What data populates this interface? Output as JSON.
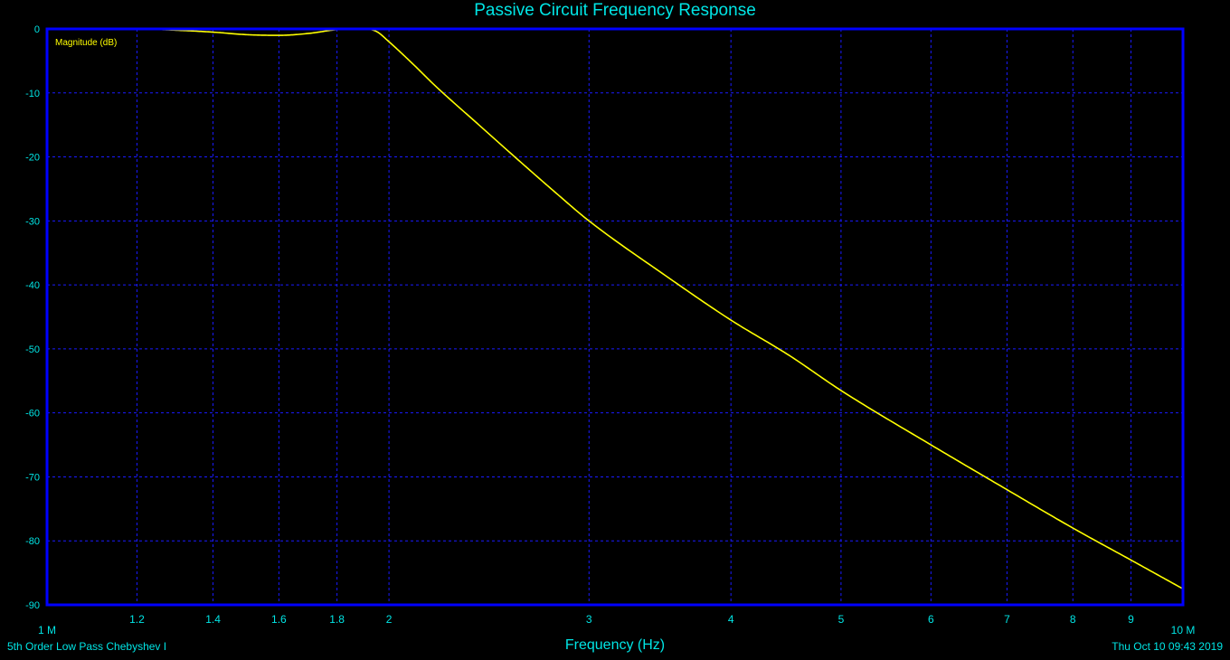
{
  "colors": {
    "background": "#000000",
    "frame": "#0000ff",
    "grid": "#1a1aff",
    "trace": "#ffff00",
    "text": "#00e5e5"
  },
  "chart_data": {
    "type": "line",
    "title": "Passive Circuit Frequency Response",
    "xlabel": "Frequency (Hz)",
    "ylabel": "Magnitude (dB)",
    "x_scale": "log",
    "xlim": [
      1000000,
      10000000
    ],
    "ylim": [
      -90,
      0
    ],
    "grid": true,
    "x_ticks": [
      {
        "value": 1000000,
        "label": "1 M"
      },
      {
        "value": 1200000,
        "label": "1.2"
      },
      {
        "value": 1400000,
        "label": "1.4"
      },
      {
        "value": 1600000,
        "label": "1.6"
      },
      {
        "value": 1800000,
        "label": "1.8"
      },
      {
        "value": 2000000,
        "label": "2"
      },
      {
        "value": 3000000,
        "label": "3"
      },
      {
        "value": 4000000,
        "label": "4"
      },
      {
        "value": 5000000,
        "label": "5"
      },
      {
        "value": 6000000,
        "label": "6"
      },
      {
        "value": 7000000,
        "label": "7"
      },
      {
        "value": 8000000,
        "label": "8"
      },
      {
        "value": 9000000,
        "label": "9"
      },
      {
        "value": 10000000,
        "label": "10 M"
      }
    ],
    "y_ticks": [
      0,
      -10,
      -20,
      -30,
      -40,
      -50,
      -60,
      -70,
      -80,
      -90
    ],
    "series": [
      {
        "name": "Magnitude (dB)",
        "x": [
          1000000,
          1100000,
          1200000,
          1300000,
          1400000,
          1500000,
          1600000,
          1700000,
          1800000,
          1850000,
          1900000,
          1950000,
          2000000,
          2100000,
          2200000,
          2400000,
          2600000,
          2800000,
          3000000,
          3500000,
          4000000,
          4500000,
          5000000,
          6000000,
          7000000,
          8000000,
          9000000,
          10000000
        ],
        "y": [
          -0.1,
          -0.1,
          0,
          -0.2,
          -0.5,
          -0.9,
          -1.0,
          -0.7,
          -0.1,
          0,
          0,
          -0.4,
          -2.0,
          -5.5,
          -9.0,
          -15.0,
          -20.5,
          -25.5,
          -30.0,
          -38.5,
          -45.5,
          -51.0,
          -56.5,
          -65.0,
          -72.0,
          -78.0,
          -83.0,
          -87.5
        ]
      }
    ]
  },
  "footer": {
    "left": "5th Order Low Pass Chebyshev I",
    "right": "Thu Oct 10 09:43 2019"
  }
}
